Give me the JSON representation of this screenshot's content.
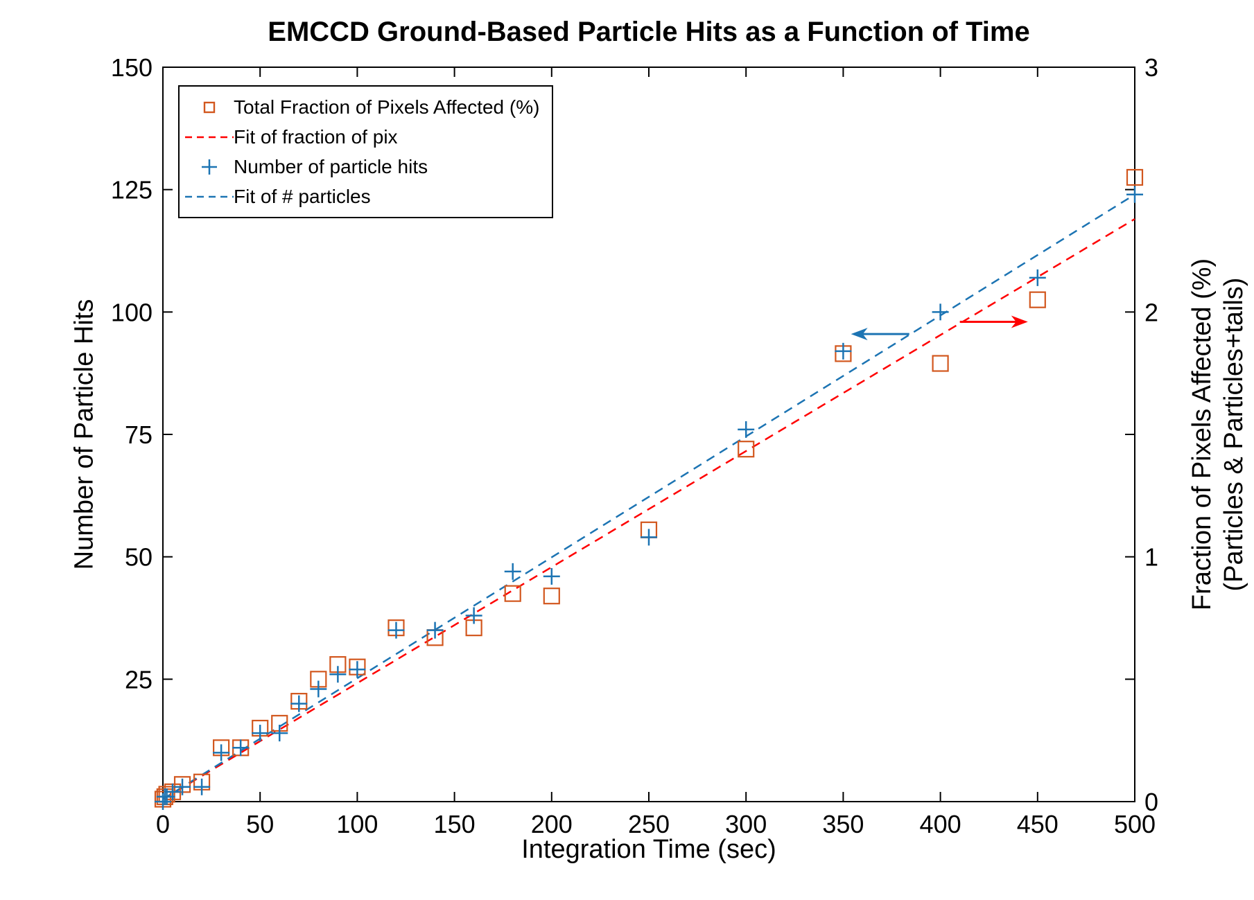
{
  "title": "EMCCD Ground-Based Particle Hits as a Function of Time",
  "axes": {
    "x": {
      "label": "Integration Time (sec)",
      "min": 0,
      "max": 500,
      "ticks": [
        0,
        50,
        100,
        150,
        200,
        250,
        300,
        350,
        400,
        450,
        500
      ]
    },
    "y_left": {
      "label": "Number of Particle Hits",
      "min": 0,
      "max": 150,
      "ticks": [
        25,
        50,
        75,
        100,
        125,
        150
      ]
    },
    "y_right": {
      "label_line1": "Fraction of Pixels Affected (%)",
      "label_line2": "(Particles & Particles+tails)",
      "min": 0,
      "max": 3,
      "tick_labels": [
        0,
        1,
        2,
        3
      ],
      "minor_ticks": [
        0.5,
        1,
        1.5,
        2,
        2.5
      ]
    }
  },
  "legend": {
    "entries": [
      {
        "label": "Total Fraction of Pixels Affected (%)",
        "marker": "open-square",
        "color": "#D2571E"
      },
      {
        "label": "Fit of fraction of pix",
        "marker": "dashed-line",
        "color": "#FF0000"
      },
      {
        "label": "Number of particle hits",
        "marker": "plus",
        "color": "#1C74B3"
      },
      {
        "label": "Fit of # particles",
        "marker": "dashed-line",
        "color": "#1C74B3"
      }
    ]
  },
  "chart_data": {
    "type": "scatter",
    "title": "EMCCD Ground-Based Particle Hits as a Function of Time",
    "xlabel": "Integration Time (sec)",
    "ylabel_left": "Number of Particle Hits",
    "ylabel_right": "Fraction of Pixels Affected (%) (Particles & Particles+tails)",
    "xlim": [
      0,
      500
    ],
    "ylim_left": [
      0,
      150
    ],
    "ylim_right": [
      0,
      3
    ],
    "grid": false,
    "legend_position": "top-left",
    "series": [
      {
        "name": "Total Fraction of Pixels Affected (%)",
        "axis": "right",
        "type": "scatter",
        "marker": "open-square",
        "color": "#D2571E",
        "x": [
          0,
          1,
          2,
          5,
          10,
          20,
          30,
          40,
          50,
          60,
          70,
          80,
          90,
          100,
          120,
          140,
          160,
          180,
          200,
          250,
          300,
          350,
          400,
          450,
          500
        ],
        "y": [
          0.01,
          0.02,
          0.03,
          0.04,
          0.07,
          0.08,
          0.22,
          0.22,
          0.3,
          0.32,
          0.41,
          0.5,
          0.56,
          0.55,
          0.71,
          0.67,
          0.71,
          0.85,
          0.84,
          1.11,
          1.44,
          1.83,
          1.79,
          2.05,
          2.55
        ]
      },
      {
        "name": "Fit of fraction of pix",
        "axis": "right",
        "type": "line",
        "style": "dashed",
        "color": "#FF0000",
        "x": [
          0,
          500
        ],
        "y": [
          0.01,
          2.38
        ]
      },
      {
        "name": "Number of particle hits",
        "axis": "left",
        "type": "scatter",
        "marker": "plus",
        "color": "#1C74B3",
        "x": [
          0,
          1,
          2,
          5,
          10,
          20,
          30,
          40,
          50,
          60,
          70,
          80,
          90,
          100,
          120,
          140,
          160,
          180,
          200,
          250,
          300,
          350,
          400,
          450,
          500
        ],
        "y": [
          0,
          1,
          1,
          2,
          3,
          3,
          10,
          11,
          14,
          14,
          20,
          23,
          26,
          27,
          35,
          35,
          38,
          47,
          46,
          54,
          76,
          92,
          100,
          107,
          124
        ]
      },
      {
        "name": "Fit of # particles",
        "axis": "left",
        "type": "line",
        "style": "dashed",
        "color": "#1C74B3",
        "x": [
          0,
          500
        ],
        "y": [
          0.5,
          124
        ]
      }
    ],
    "annotations": [
      {
        "type": "arrow",
        "color": "#1C74B3",
        "points_to": "left",
        "x_tail": 384,
        "x_head": 354,
        "y_on_left_axis": 95.5
      },
      {
        "type": "arrow",
        "color": "#FF0000",
        "points_to": "right",
        "x_tail": 410,
        "x_head": 445,
        "y_on_left_axis": 98
      }
    ]
  }
}
